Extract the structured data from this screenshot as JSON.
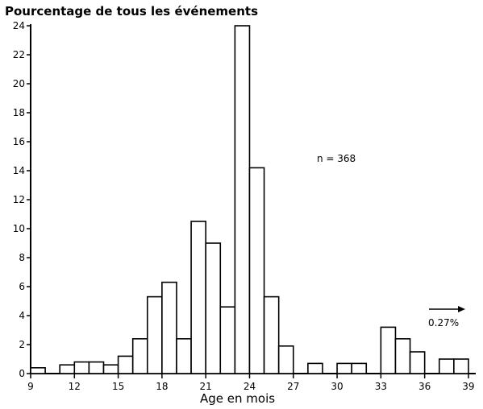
{
  "chart_data": {
    "type": "bar",
    "title": "Pourcentage de tous les événements",
    "xlabel": "Age en mois",
    "ylabel": "",
    "annotation_n": "n = 368",
    "annotation_overflow": "0.27%",
    "xlim": [
      9,
      39.5
    ],
    "ylim": [
      0,
      24
    ],
    "x_ticks": [
      9,
      12,
      15,
      18,
      21,
      24,
      27,
      30,
      33,
      36,
      39
    ],
    "y_ticks": [
      0,
      2,
      4,
      6,
      8,
      10,
      12,
      14,
      16,
      18,
      20,
      22,
      24
    ],
    "grid": false,
    "bin_width": 1,
    "bins": [
      {
        "x": 9,
        "value": 0.4
      },
      {
        "x": 11,
        "value": 0.6
      },
      {
        "x": 12,
        "value": 0.8
      },
      {
        "x": 13,
        "value": 0.8
      },
      {
        "x": 14,
        "value": 0.6
      },
      {
        "x": 15,
        "value": 1.2
      },
      {
        "x": 16,
        "value": 2.4
      },
      {
        "x": 17,
        "value": 5.3
      },
      {
        "x": 18,
        "value": 6.3
      },
      {
        "x": 19,
        "value": 2.4
      },
      {
        "x": 20,
        "value": 10.5
      },
      {
        "x": 21,
        "value": 9.0
      },
      {
        "x": 22,
        "value": 4.6
      },
      {
        "x": 23,
        "value": 24.0
      },
      {
        "x": 24,
        "value": 14.2
      },
      {
        "x": 25,
        "value": 5.3
      },
      {
        "x": 26,
        "value": 1.9
      },
      {
        "x": 28,
        "value": 0.7
      },
      {
        "x": 30,
        "value": 0.7
      },
      {
        "x": 31,
        "value": 0.7
      },
      {
        "x": 33,
        "value": 3.2
      },
      {
        "x": 34,
        "value": 2.4
      },
      {
        "x": 35,
        "value": 1.5
      },
      {
        "x": 37,
        "value": 1.0
      },
      {
        "x": 38,
        "value": 1.0
      }
    ]
  }
}
